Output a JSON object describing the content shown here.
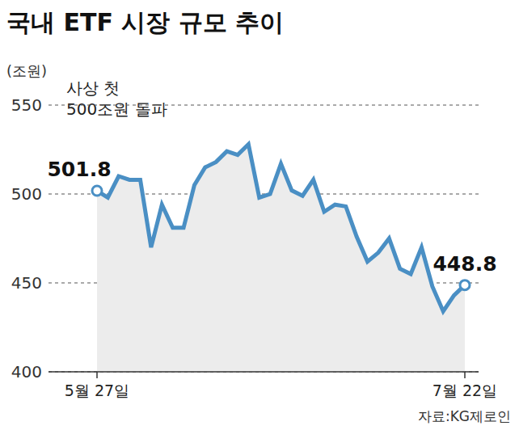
{
  "chart_data": {
    "type": "area",
    "title": "국내 ETF 시장 규모 추이",
    "y_label": "(조원)",
    "annotation": "사상 첫\n500조원 돌파",
    "source": "자료:KG제로인",
    "categories": [
      "5월 27일",
      null,
      null,
      null,
      null,
      null,
      null,
      null,
      null,
      null,
      null,
      null,
      null,
      null,
      null,
      null,
      null,
      null,
      null,
      null,
      null,
      null,
      null,
      null,
      null,
      null,
      null,
      null,
      null,
      null,
      null,
      null,
      null,
      null,
      "7월 22일"
    ],
    "values": [
      501.8,
      498,
      510,
      508,
      508,
      470,
      494,
      481,
      481,
      505,
      515,
      518,
      524,
      522,
      528,
      498,
      500,
      517,
      502,
      499,
      508,
      490,
      494,
      493,
      476,
      462,
      467,
      475,
      458,
      455,
      470,
      448,
      434,
      443,
      448.8
    ],
    "value_labels": [
      "501.8",
      null,
      null,
      null,
      null,
      null,
      null,
      null,
      null,
      null,
      null,
      null,
      null,
      null,
      null,
      null,
      null,
      null,
      null,
      null,
      null,
      null,
      null,
      null,
      null,
      null,
      null,
      null,
      null,
      null,
      null,
      null,
      null,
      null,
      "448.8"
    ],
    "color": "#4a8fc4",
    "ylim": [
      400,
      550
    ],
    "yticks": [
      400,
      450,
      500,
      550
    ],
    "grid": true
  }
}
